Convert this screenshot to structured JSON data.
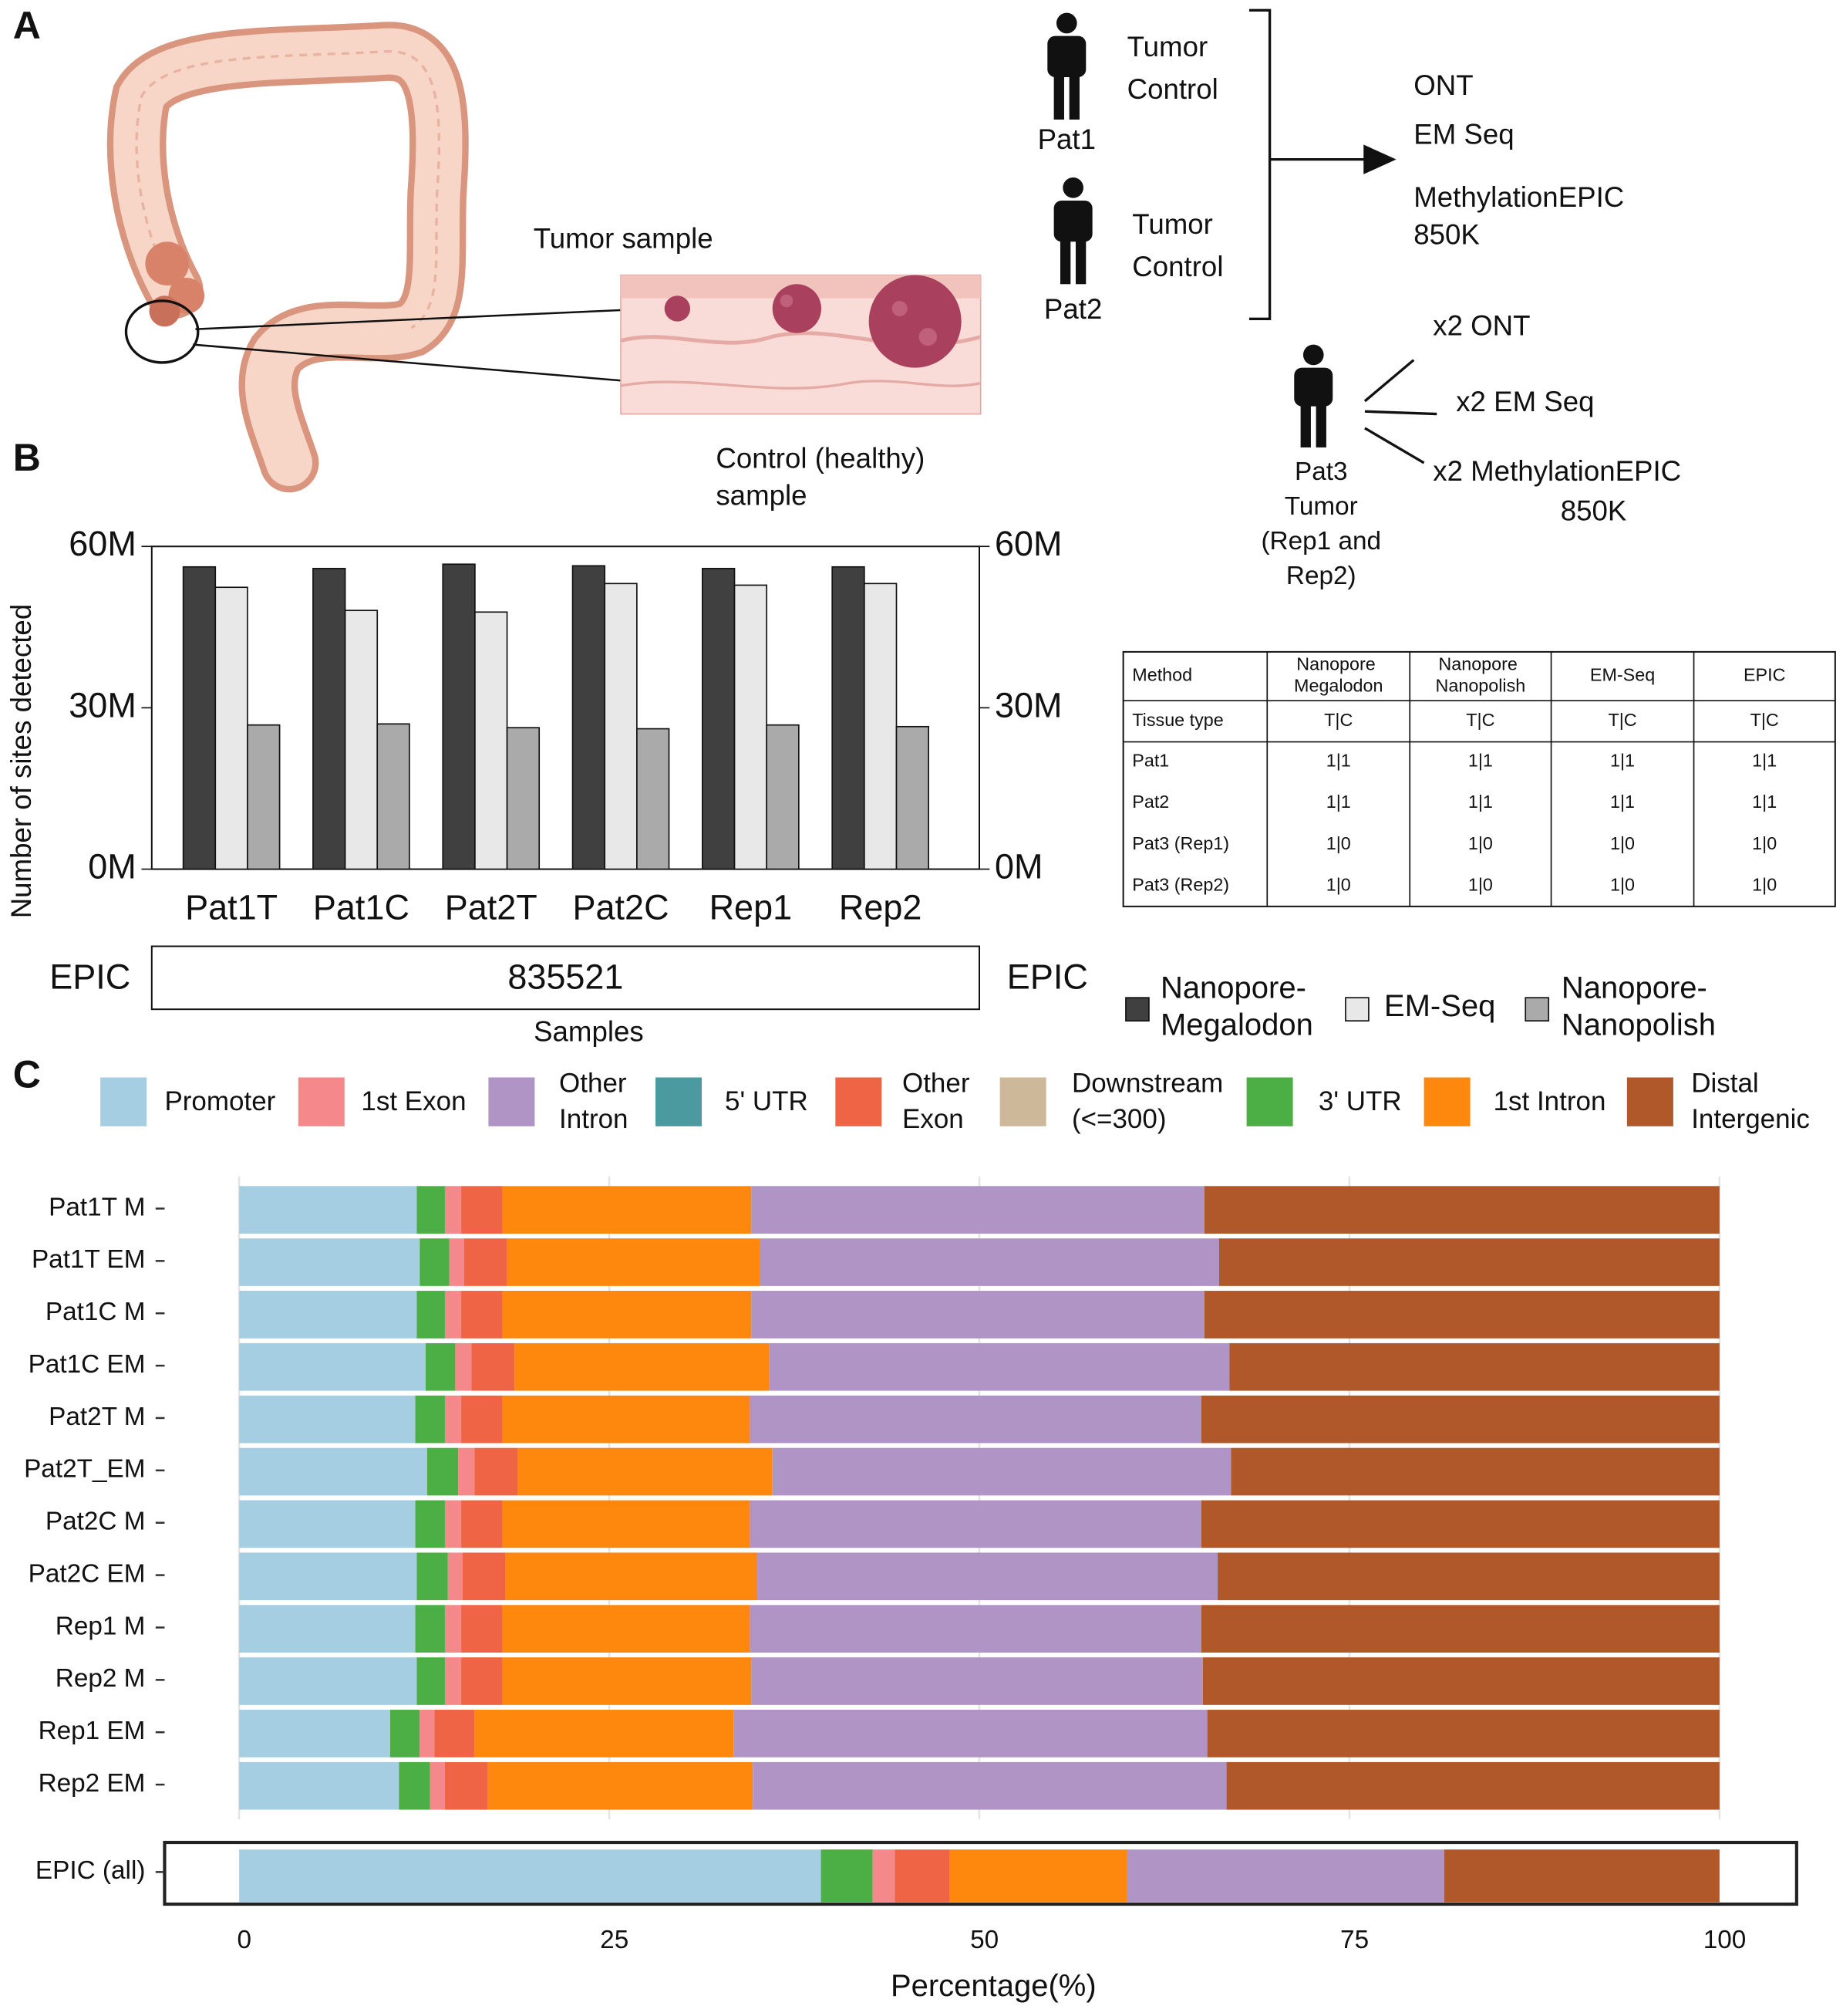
{
  "panel_labels": [
    "A",
    "B",
    "C"
  ],
  "diagram": {
    "tumor_sample": "Tumor sample",
    "control_sample": [
      "Control (healthy)",
      "sample"
    ],
    "patients": [
      {
        "name": "Pat1",
        "tissues": [
          "Tumor",
          "Control"
        ]
      },
      {
        "name": "Pat2",
        "tissues": [
          "Tumor",
          "Control"
        ]
      }
    ],
    "methods": [
      [
        "ONT"
      ],
      [
        "EM Seq"
      ],
      [
        "MethylationEPIC",
        "850K"
      ]
    ],
    "replicate_patient": [
      "Pat3",
      "Tumor",
      "(Rep1 and",
      "Rep2)"
    ],
    "replicate_methods": [
      [
        "x2 ONT"
      ],
      [
        "x2 EM Seq"
      ],
      [
        "x2 MethylationEPIC",
        "850K"
      ]
    ]
  },
  "table": {
    "header": [
      "Method",
      "Nanopore Megalodon",
      "Nanopore Nanopolish",
      "EM-Seq",
      "EPIC"
    ],
    "rows": [
      [
        "Tissue type",
        "T|C",
        "T|C",
        "T|C",
        "T|C"
      ],
      [
        "Pat1",
        "1|1",
        "1|1",
        "1|1",
        "1|1"
      ],
      [
        "Pat2",
        "1|1",
        "1|1",
        "1|1",
        "1|1"
      ],
      [
        "Pat3 (Rep1)",
        "1|0",
        "1|0",
        "1|0",
        "1|0"
      ],
      [
        "Pat3 (Rep2)",
        "1|0",
        "1|0",
        "1|0",
        "1|0"
      ]
    ]
  },
  "chart_data": [
    {
      "type": "bar",
      "ylabel": "Number of sites detected",
      "xlabel": "Samples",
      "categories": [
        "Pat1T",
        "Pat1C",
        "Pat2T",
        "Pat2C",
        "Rep1",
        "Rep2"
      ],
      "series": [
        {
          "name": "Nanopore-Megalodon",
          "color": "#404040",
          "values": [
            56200000,
            55900000,
            56700000,
            56400000,
            55900000,
            56200000
          ]
        },
        {
          "name": "EM-Seq",
          "color": "#e8e8e8",
          "values": [
            52400000,
            48100000,
            47800000,
            53100000,
            52800000,
            53100000
          ]
        },
        {
          "name": "Nanopore-Nanopolish",
          "color": "#aaaaaa",
          "values": [
            26800000,
            27000000,
            26300000,
            26100000,
            26800000,
            26500000
          ]
        }
      ],
      "ylim": [
        0,
        60000000
      ],
      "yticks": [
        {
          "value": 0,
          "label": "0M"
        },
        {
          "value": 30000000,
          "label": "30M"
        },
        {
          "value": 60000000,
          "label": "60M"
        }
      ],
      "strip": {
        "label": "EPIC",
        "value": 835521
      }
    },
    {
      "type": "stacked-barh",
      "xlabel": "Percentage(%)",
      "categories": [
        "Pat1T M",
        "Pat1T EM",
        "Pat1C M",
        "Pat1C EM",
        "Pat2T M",
        "Pat2T_EM",
        "Pat2C M",
        "Pat2C EM",
        "Rep1 M",
        "Rep2 M",
        "Rep1 EM",
        "Rep2 EM",
        "EPIC (all)"
      ],
      "series": [
        {
          "name": "Promoter",
          "color": "#a6cee3",
          "values": [
            12.0,
            12.2,
            12.0,
            12.6,
            11.9,
            12.7,
            11.9,
            12.0,
            11.9,
            12.0,
            10.2,
            10.8,
            39.3
          ]
        },
        {
          "name": "5' UTR",
          "color": "#4a9aa0",
          "values": [
            0,
            0,
            0,
            0,
            0,
            0,
            0,
            0,
            0,
            0,
            0,
            0,
            0
          ]
        },
        {
          "name": "3' UTR",
          "color": "#4caf45",
          "values": [
            1.9,
            2.0,
            1.9,
            2.0,
            2.0,
            2.1,
            2.0,
            2.1,
            2.0,
            1.9,
            2.0,
            2.1,
            3.5
          ]
        },
        {
          "name": "1st Exon",
          "color": "#f4888b",
          "values": [
            1.1,
            1.0,
            1.1,
            1.1,
            1.1,
            1.1,
            1.1,
            1.0,
            1.1,
            1.1,
            1.0,
            1.0,
            1.5
          ]
        },
        {
          "name": "Other Exon",
          "color": "#ef6444",
          "values": [
            2.8,
            2.9,
            2.8,
            2.9,
            2.8,
            2.9,
            2.8,
            2.9,
            2.8,
            2.8,
            2.7,
            2.9,
            3.7
          ]
        },
        {
          "name": "Downstream (<=300)",
          "color": "#cdb99a",
          "values": [
            0,
            0,
            0,
            0,
            0,
            0,
            0,
            0,
            0,
            0,
            0,
            0,
            0
          ]
        },
        {
          "name": "1st Intron",
          "color": "#fd880d",
          "values": [
            16.8,
            17.1,
            16.8,
            17.2,
            16.7,
            17.2,
            16.7,
            17.0,
            16.7,
            16.8,
            17.5,
            17.9,
            12.0
          ]
        },
        {
          "name": "Other Intron",
          "color": "#b094c6",
          "values": [
            30.6,
            31.0,
            30.6,
            31.1,
            30.5,
            31.0,
            30.5,
            31.1,
            30.5,
            30.5,
            32.0,
            32.0,
            21.4
          ]
        },
        {
          "name": "Distal Intergenic",
          "color": "#b0582a",
          "values": [
            34.8,
            33.8,
            34.8,
            33.1,
            35.0,
            33.0,
            35.0,
            33.9,
            35.0,
            34.9,
            34.6,
            33.3,
            18.6
          ]
        }
      ],
      "xlim": [
        0,
        100
      ],
      "xticks": [
        0,
        25,
        50,
        75,
        100
      ],
      "grid": true
    }
  ]
}
